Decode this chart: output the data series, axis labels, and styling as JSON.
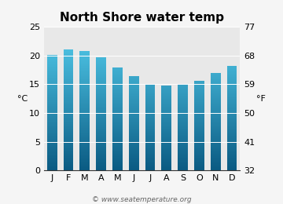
{
  "title": "North Shore water temp",
  "months": [
    "J",
    "F",
    "M",
    "A",
    "M",
    "J",
    "J",
    "A",
    "S",
    "O",
    "N",
    "D"
  ],
  "values_c": [
    20.1,
    21.1,
    20.7,
    19.7,
    17.9,
    16.4,
    15.0,
    14.7,
    15.0,
    15.6,
    16.9,
    18.2
  ],
  "ylim_c": [
    0,
    25
  ],
  "yticks_c": [
    0,
    5,
    10,
    15,
    20,
    25
  ],
  "yticks_f": [
    32,
    41,
    50,
    59,
    68,
    77
  ],
  "ylabel_left": "°C",
  "ylabel_right": "°F",
  "bar_color_top": "#55d0f0",
  "bar_color_bottom": "#0a5a82",
  "bar_width": 0.62,
  "bg_color": "#f5f5f5",
  "plot_bg": "#e8e8e8",
  "watermark": "© www.seatemperature.org",
  "title_fontsize": 11,
  "axis_fontsize": 8,
  "tick_fontsize": 8,
  "watermark_fontsize": 6.5
}
